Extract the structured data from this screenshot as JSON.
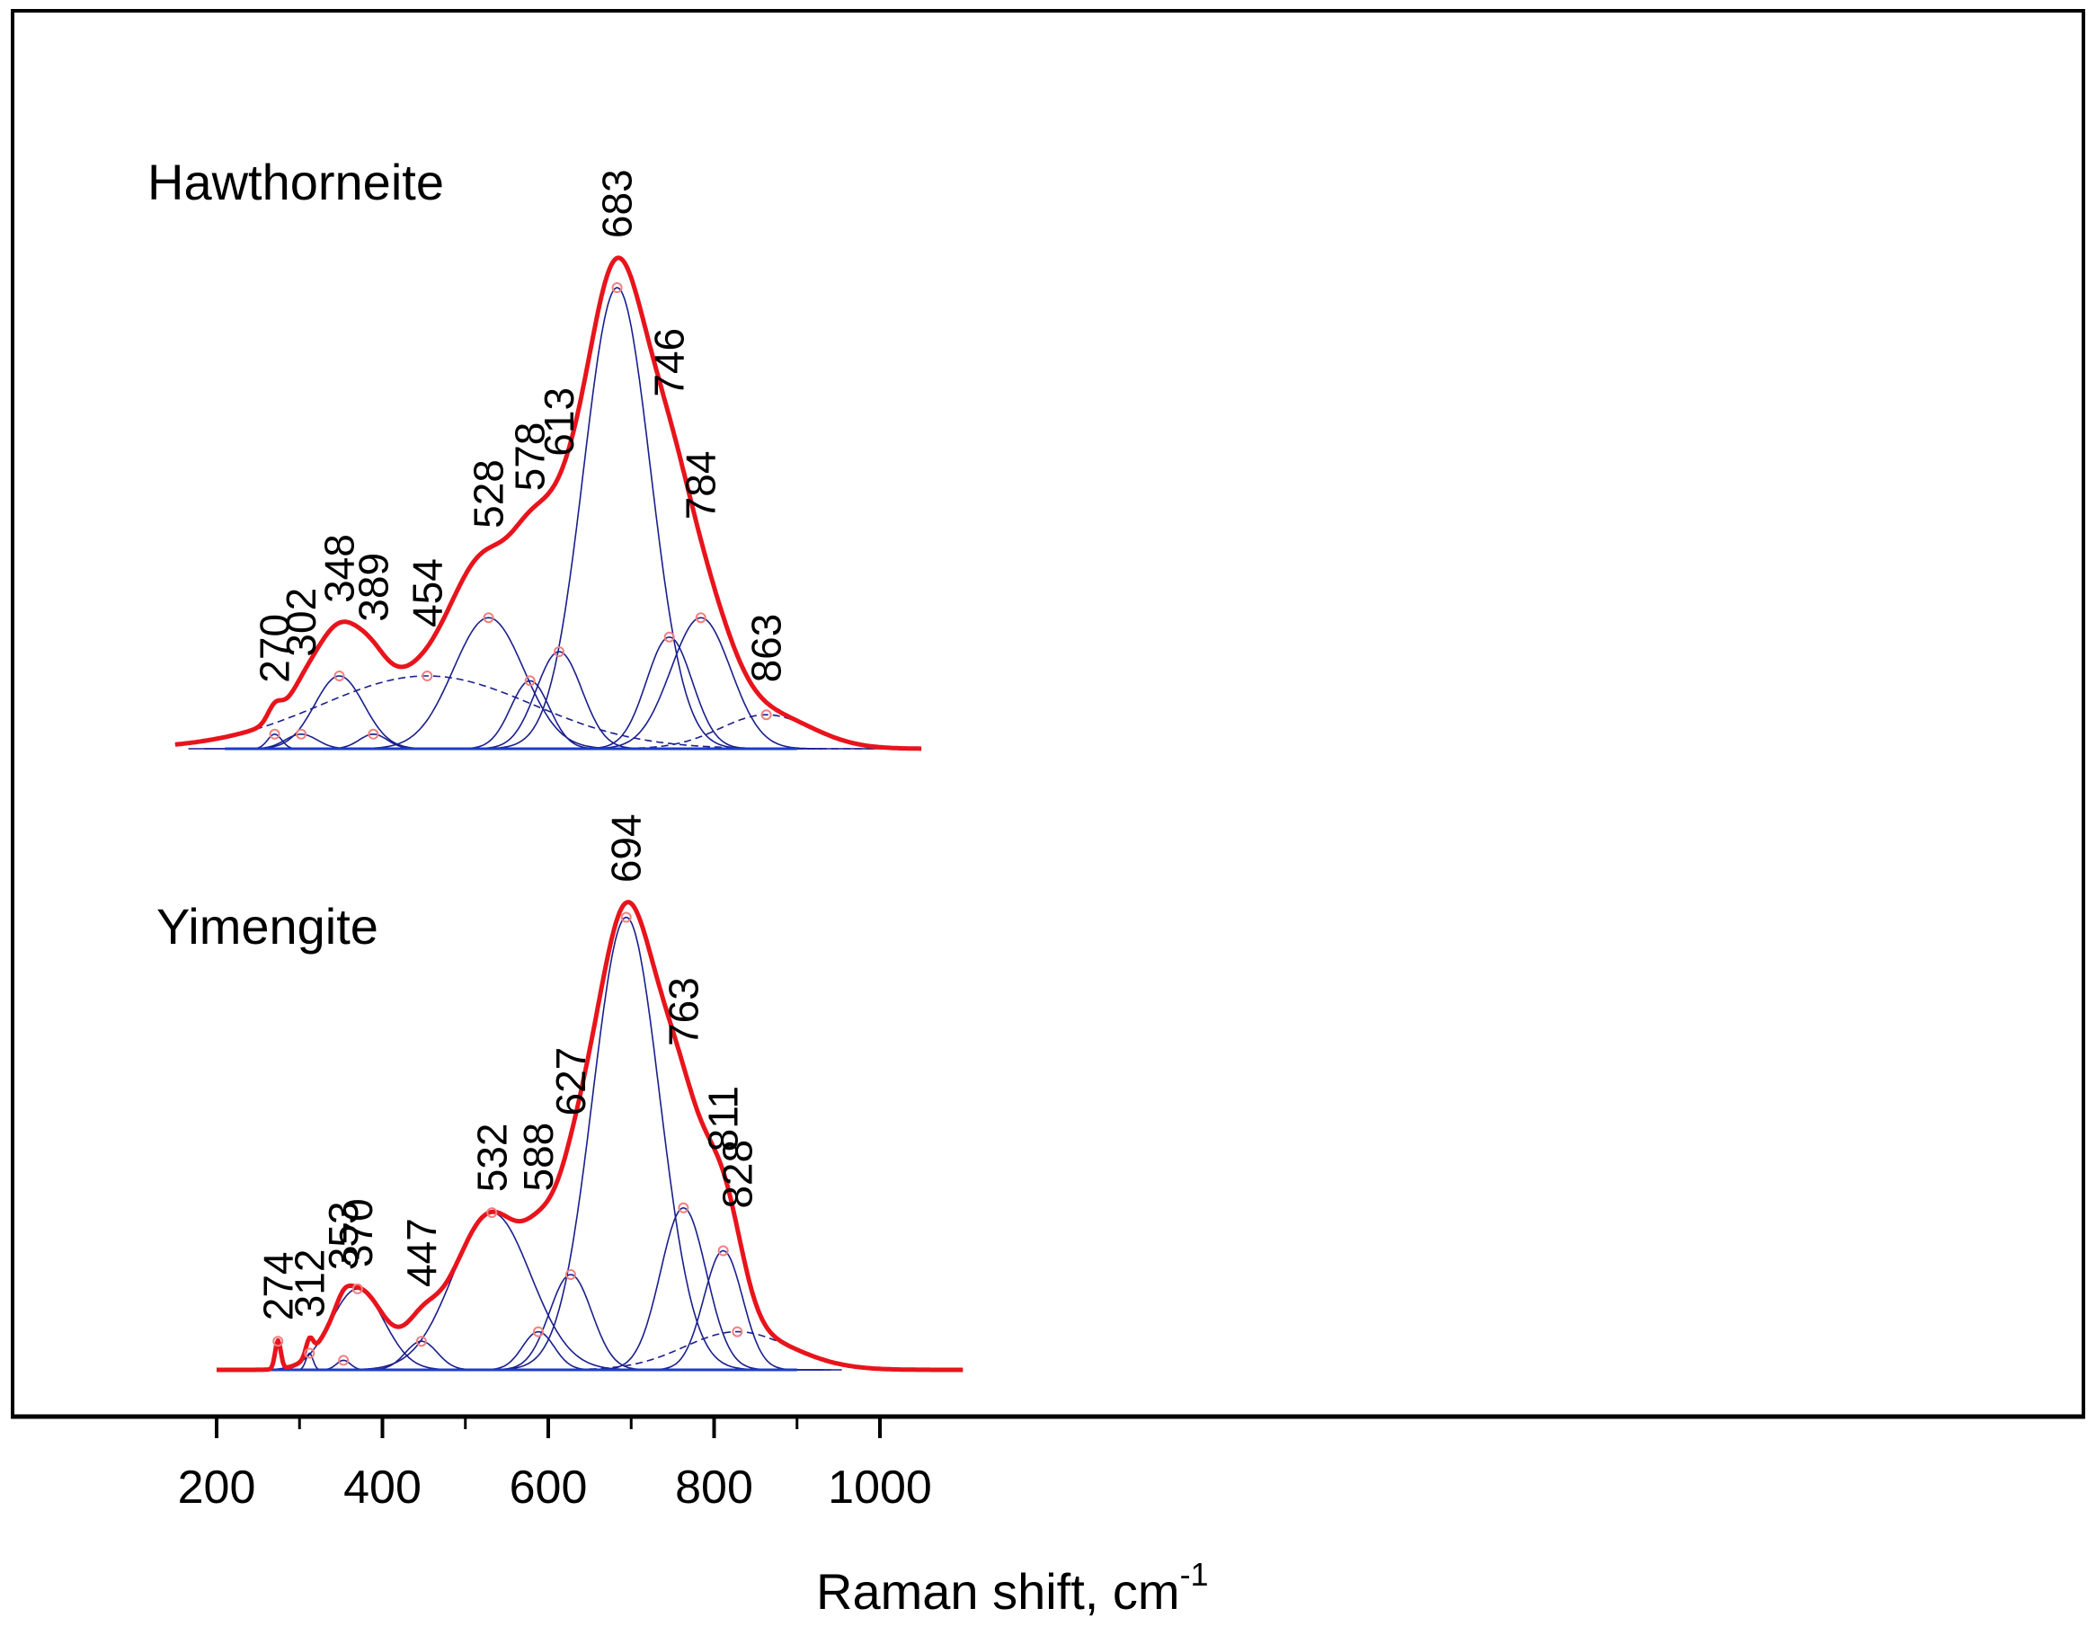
{
  "chart_data": {
    "type": "line",
    "xlabel": "Raman shift, cm",
    "xlabel_superscript": "-1",
    "xlim": [
      100,
      1100
    ],
    "xticks": [
      200,
      400,
      600,
      800,
      1000
    ],
    "x_minor_ticks": [
      300,
      500,
      700,
      900
    ],
    "ylabel": "",
    "y_ticks_shown": false,
    "grid": false,
    "legend": "none",
    "colors": {
      "envelope": "#e8141c",
      "component": "#1a1f8c",
      "baseline": "#1e3cc8",
      "marker": "#f08080",
      "axis": "#000000"
    },
    "spectra": [
      {
        "title": "Hawthorneite",
        "x_range": [
          150,
          1050
        ],
        "peaks": [
          270,
          302,
          348,
          389,
          454,
          528,
          578,
          613,
          683,
          746,
          784,
          863
        ],
        "components": [
          {
            "center": 270,
            "amplitude": 0.03,
            "fwhm": 20
          },
          {
            "center": 302,
            "amplitude": 0.03,
            "fwhm": 45
          },
          {
            "center": 348,
            "amplitude": 0.15,
            "fwhm": 70
          },
          {
            "center": 389,
            "amplitude": 0.03,
            "fwhm": 40
          },
          {
            "center": 454,
            "amplitude": 0.15,
            "fwhm": 300
          },
          {
            "center": 528,
            "amplitude": 0.27,
            "fwhm": 100
          },
          {
            "center": 578,
            "amplitude": 0.14,
            "fwhm": 55
          },
          {
            "center": 613,
            "amplitude": 0.2,
            "fwhm": 65
          },
          {
            "center": 683,
            "amplitude": 0.95,
            "fwhm": 95
          },
          {
            "center": 746,
            "amplitude": 0.23,
            "fwhm": 65
          },
          {
            "center": 784,
            "amplitude": 0.27,
            "fwhm": 85
          },
          {
            "center": 863,
            "amplitude": 0.07,
            "fwhm": 130
          }
        ]
      },
      {
        "title": "Yimengite",
        "x_range": [
          200,
          1100
        ],
        "peaks": [
          274,
          312,
          353,
          370,
          447,
          532,
          588,
          627,
          694,
          763,
          811,
          828
        ],
        "components": [
          {
            "center": 274,
            "amplitude": 0.06,
            "fwhm": 8
          },
          {
            "center": 312,
            "amplitude": 0.035,
            "fwhm": 10
          },
          {
            "center": 353,
            "amplitude": 0.02,
            "fwhm": 20
          },
          {
            "center": 370,
            "amplitude": 0.17,
            "fwhm": 75
          },
          {
            "center": 447,
            "amplitude": 0.06,
            "fwhm": 45
          },
          {
            "center": 532,
            "amplitude": 0.33,
            "fwhm": 110
          },
          {
            "center": 588,
            "amplitude": 0.08,
            "fwhm": 45
          },
          {
            "center": 627,
            "amplitude": 0.2,
            "fwhm": 60
          },
          {
            "center": 694,
            "amplitude": 0.95,
            "fwhm": 95
          },
          {
            "center": 763,
            "amplitude": 0.34,
            "fwhm": 65
          },
          {
            "center": 811,
            "amplitude": 0.25,
            "fwhm": 55
          },
          {
            "center": 828,
            "amplitude": 0.08,
            "fwhm": 150
          }
        ]
      }
    ]
  }
}
